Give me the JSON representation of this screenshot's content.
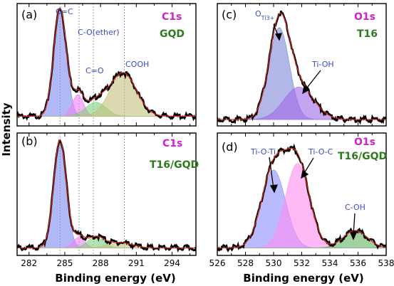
{
  "figure": {
    "ylabel": "Intensity",
    "xlabel_left": "Binding energy (eV)",
    "xlabel_right": "Binding energy (eV)",
    "colors": {
      "experimental": "#000000",
      "envelope": "#d42a1f",
      "c_eq_c": "#7b8bf0",
      "c_o_ether": "#f07ff0",
      "c_eq_o": "#7fcf7f",
      "cooh": "#c2c07a",
      "o_ti3": "#7f87d8",
      "ti_oh": "#a069e6",
      "ti_o_ti": "#8c8cff",
      "ti_o_c": "#ff8cf0",
      "c_oh": "#62b262",
      "magenta_label": "#d020d0",
      "green_label": "#2e7a1e",
      "blue_label": "#3a4ccc"
    }
  },
  "chart_data": [
    {
      "panel": "(a)",
      "type": "area",
      "element": "C1s",
      "sample": "GQD",
      "xlim": [
        281,
        296
      ],
      "ylim": [
        0,
        1
      ],
      "ticks": [
        "282",
        "285",
        "288",
        "291",
        "294"
      ],
      "tick_values": [
        282,
        285,
        288,
        291,
        294
      ],
      "reference_lines": [
        284.6,
        286.2,
        287.4,
        290.0
      ],
      "annotations": [
        "C=C",
        "C-O(ether)",
        "C=O",
        "COOH"
      ],
      "components": [
        {
          "name": "C=C",
          "center": 284.6,
          "fwhm": 1.25,
          "height": 1.0,
          "color": "c_eq_c"
        },
        {
          "name": "C-O(ether)",
          "center": 286.1,
          "fwhm": 1.1,
          "height": 0.2,
          "color": "c_o_ether"
        },
        {
          "name": "C=O",
          "center": 287.6,
          "fwhm": 2.0,
          "height": 0.13,
          "color": "c_eq_o"
        },
        {
          "name": "COOH",
          "center": 289.9,
          "fwhm": 2.6,
          "height": 0.4,
          "color": "cooh"
        }
      ],
      "baseline": 0.05
    },
    {
      "panel": "(b)",
      "type": "area",
      "element": "C1s",
      "sample": "T16/GQD",
      "xlim": [
        281,
        296
      ],
      "ylim": [
        0,
        1
      ],
      "ticks": [
        "282",
        "285",
        "288",
        "291",
        "294"
      ],
      "tick_values": [
        282,
        285,
        288,
        291,
        294
      ],
      "reference_lines": [
        284.6,
        286.2,
        287.4,
        290.0
      ],
      "components": [
        {
          "name": "C=C",
          "center": 284.6,
          "fwhm": 1.25,
          "height": 1.0,
          "color": "c_eq_c"
        },
        {
          "name": "C-O(ether)",
          "center": 286.2,
          "fwhm": 1.1,
          "height": 0.1,
          "color": "c_o_ether"
        },
        {
          "name": "C=O",
          "center": 287.6,
          "fwhm": 1.6,
          "height": 0.1,
          "color": "c_eq_o"
        },
        {
          "name": "COOH",
          "center": 289.6,
          "fwhm": 2.4,
          "height": 0.05,
          "color": "cooh"
        }
      ],
      "baseline": 0.03
    },
    {
      "panel": "(c)",
      "type": "area",
      "element": "O1s",
      "sample": "T16",
      "xlim": [
        526,
        538
      ],
      "ylim": [
        0,
        1
      ],
      "ticks": [],
      "tick_values": [
        526,
        528,
        530,
        532,
        534,
        536,
        538
      ],
      "annotations": [
        "O",
        "Ti3+",
        "Ti-OH"
      ],
      "components": [
        {
          "name": "O_Ti3+",
          "center": 530.4,
          "fwhm": 1.7,
          "height": 0.85,
          "color": "o_ti3"
        },
        {
          "name": "Ti-OH",
          "center": 531.8,
          "fwhm": 2.5,
          "height": 0.3,
          "color": "ti_oh"
        }
      ],
      "baseline": 0.02
    },
    {
      "panel": "(d)",
      "type": "area",
      "element": "O1s",
      "sample": "T16/GQD",
      "xlim": [
        526,
        538
      ],
      "ylim": [
        0,
        1
      ],
      "ticks": [
        "526",
        "528",
        "530",
        "532",
        "534",
        "536",
        "538"
      ],
      "tick_values": [
        526,
        528,
        530,
        532,
        534,
        536,
        538
      ],
      "annotations": [
        "Ti-O-Ti",
        "Ti-O-C",
        "C-OH"
      ],
      "components": [
        {
          "name": "Ti-O-Ti",
          "center": 530.0,
          "fwhm": 2.0,
          "height": 0.72,
          "color": "ti_o_ti"
        },
        {
          "name": "Ti-O-C",
          "center": 531.7,
          "fwhm": 2.0,
          "height": 0.78,
          "color": "ti_o_c"
        },
        {
          "name": "C-OH",
          "center": 535.8,
          "fwhm": 2.0,
          "height": 0.16,
          "color": "c_oh"
        }
      ],
      "baseline": 0.03
    }
  ]
}
